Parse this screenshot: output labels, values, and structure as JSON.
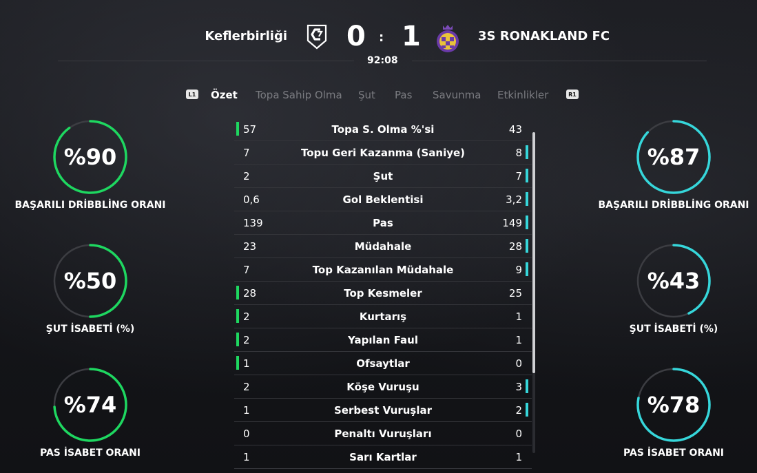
{
  "colors": {
    "home": "#1ed760",
    "away": "#36d6da",
    "ring_track": "#3c3d42"
  },
  "match": {
    "home_team": "Keflerbirliği",
    "away_team": "3S RONAKLAND FC",
    "home_score": "0",
    "away_score": "1",
    "separator": ":",
    "clock": "92:08",
    "home_crest": "keflerbirligi-crest-icon",
    "away_crest": "ronakland-crest-icon"
  },
  "tabs": {
    "left_hint": "L1",
    "right_hint": "R1",
    "items": [
      "Özet",
      "Topa Sahip Olma",
      "Şut",
      "Pas",
      "Savunma",
      "Etkinlikler"
    ],
    "active": "Özet"
  },
  "rings": {
    "left": [
      {
        "value": "%90",
        "percent": 90,
        "label": "BAŞARILI DRİBBLİNG ORANI"
      },
      {
        "value": "%50",
        "percent": 50,
        "label": "ŞUT İSABETİ (%)"
      },
      {
        "value": "%74",
        "percent": 74,
        "label": "PAS İSABET ORANI"
      }
    ],
    "right": [
      {
        "value": "%87",
        "percent": 87,
        "label": "BAŞARILI DRİBBLİNG ORANI"
      },
      {
        "value": "%43",
        "percent": 43,
        "label": "ŞUT İSABETİ (%)"
      },
      {
        "value": "%78",
        "percent": 78,
        "label": "PAS İSABET ORANI"
      }
    ]
  },
  "stats": [
    {
      "name": "Topa S. Olma %'si",
      "home": "57",
      "away": "43",
      "leader": "home"
    },
    {
      "name": "Topu Geri Kazanma (Saniye)",
      "home": "7",
      "away": "8",
      "leader": "away"
    },
    {
      "name": "Şut",
      "home": "2",
      "away": "7",
      "leader": "away"
    },
    {
      "name": "Gol Beklentisi",
      "home": "0,6",
      "away": "3,2",
      "leader": "away"
    },
    {
      "name": "Pas",
      "home": "139",
      "away": "149",
      "leader": "away"
    },
    {
      "name": "Müdahale",
      "home": "23",
      "away": "28",
      "leader": "away"
    },
    {
      "name": "Top Kazanılan Müdahale",
      "home": "7",
      "away": "9",
      "leader": "away"
    },
    {
      "name": "Top Kesmeler",
      "home": "28",
      "away": "25",
      "leader": "home"
    },
    {
      "name": "Kurtarış",
      "home": "2",
      "away": "1",
      "leader": "home"
    },
    {
      "name": "Yapılan Faul",
      "home": "2",
      "away": "1",
      "leader": "home"
    },
    {
      "name": "Ofsaytlar",
      "home": "1",
      "away": "0",
      "leader": "home"
    },
    {
      "name": "Köşe Vuruşu",
      "home": "2",
      "away": "3",
      "leader": "away"
    },
    {
      "name": "Serbest Vuruşlar",
      "home": "1",
      "away": "2",
      "leader": "away"
    },
    {
      "name": "Penaltı Vuruşları",
      "home": "0",
      "away": "0",
      "leader": "none"
    },
    {
      "name": "Sarı Kartlar",
      "home": "1",
      "away": "1",
      "leader": "none"
    }
  ]
}
